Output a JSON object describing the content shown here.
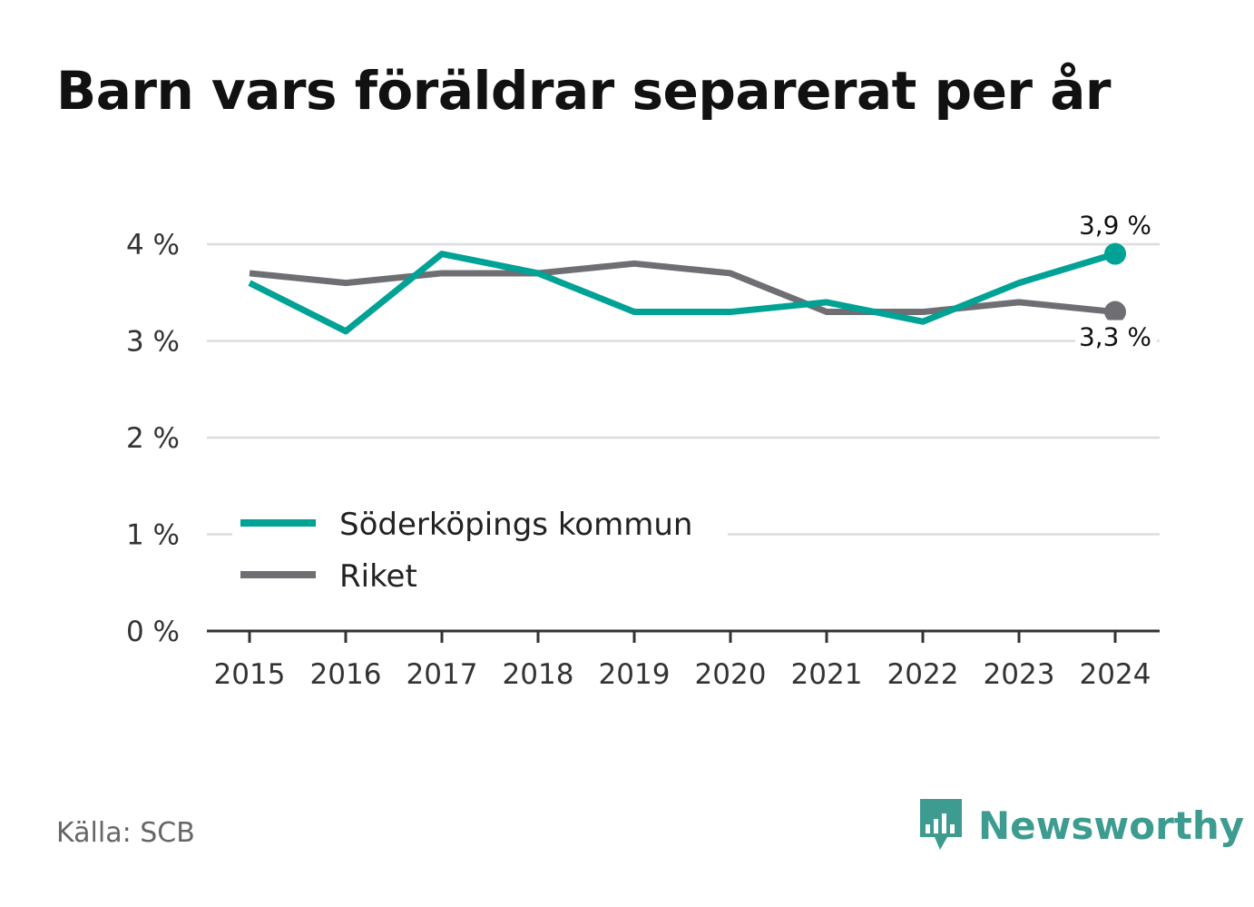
{
  "title": "Barn vars föräldrar separerat per år",
  "source": "Källa: SCB",
  "brand": {
    "name": "Newsworthy",
    "icon": "newsworthy-logo-icon",
    "color": "#3d9c8f"
  },
  "chart_data": {
    "type": "line",
    "categories": [
      "2015",
      "2016",
      "2017",
      "2018",
      "2019",
      "2020",
      "2021",
      "2022",
      "2023",
      "2024"
    ],
    "series": [
      {
        "name": "Söderköpings kommun",
        "color": "#00a295",
        "values": [
          3.6,
          3.1,
          3.9,
          3.7,
          3.3,
          3.3,
          3.4,
          3.2,
          3.6,
          3.9
        ],
        "end_label": "3,9 %"
      },
      {
        "name": "Riket",
        "color": "#6e6e73",
        "values": [
          3.7,
          3.6,
          3.7,
          3.7,
          3.8,
          3.7,
          3.3,
          3.3,
          3.4,
          3.3
        ],
        "end_label": "3,3 %"
      }
    ],
    "y_ticks": [
      0,
      1,
      2,
      3,
      4
    ],
    "y_tick_labels": [
      "0 %",
      "1 %",
      "2 %",
      "3 %",
      "4 %"
    ],
    "ylim": [
      0,
      4
    ],
    "grid": true,
    "legend_position": "bottom-left"
  }
}
